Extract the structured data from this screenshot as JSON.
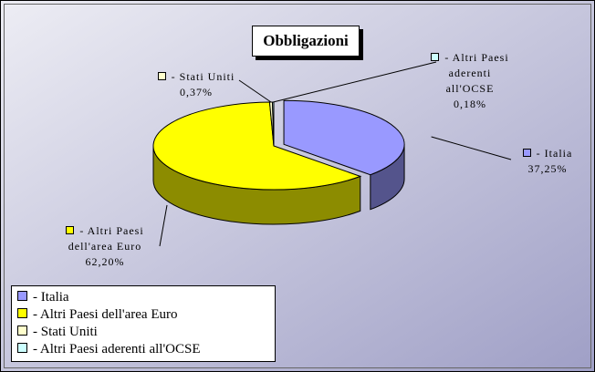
{
  "chart_data": {
    "type": "pie3d",
    "title": "Obbligazioni",
    "categories": [
      "- Italia",
      "- Altri Paesi dell'area Euro",
      "- Stati Uniti",
      "- Altri Paesi aderenti all'OCSE"
    ],
    "values": [
      37.25,
      62.2,
      0.37,
      0.18
    ],
    "value_labels": [
      "37,25%",
      "62,20%",
      "0,37%",
      "0,18%"
    ],
    "colors": [
      "#9999ff",
      "#ffff00",
      "#ffffcc",
      "#ccffff"
    ],
    "legend": "bottom-left"
  }
}
